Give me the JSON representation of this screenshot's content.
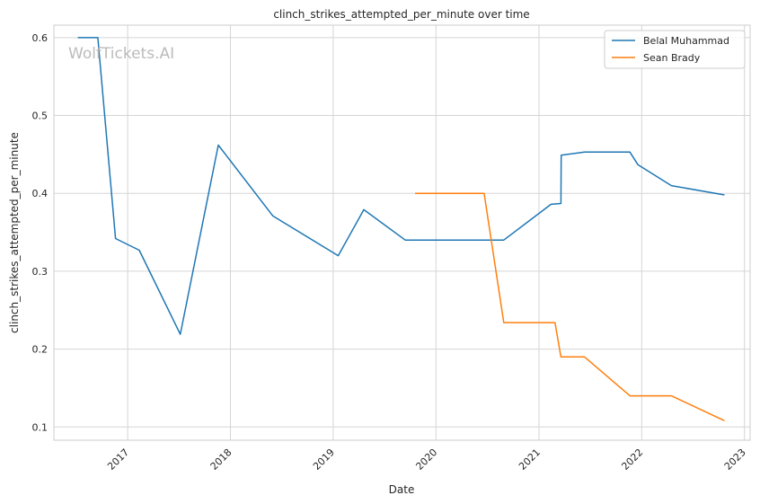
{
  "chart_data": {
    "type": "line",
    "title": "clinch_strikes_attempted_per_minute over time",
    "xlabel": "Date",
    "ylabel": "clinch_strikes_attempted_per_minute",
    "watermark": "WolfTickets.AI",
    "x_ticks": [
      "2017",
      "2018",
      "2019",
      "2020",
      "2021",
      "2022",
      "2023"
    ],
    "y_ticks": [
      "0.1",
      "0.2",
      "0.3",
      "0.4",
      "0.5",
      "0.6"
    ],
    "xlim": [
      "2016-04-14",
      "2023-01-21"
    ],
    "ylim": [
      0.083,
      0.616
    ],
    "grid": true,
    "legend_position": "top-right",
    "series": [
      {
        "name": "Belal Muhammad",
        "color": "#1f77b4",
        "points": [
          [
            "2016-07-08",
            0.6
          ],
          [
            "2016-09-17",
            0.6
          ],
          [
            "2016-11-19",
            0.342
          ],
          [
            "2017-02-11",
            0.327
          ],
          [
            "2017-07-07",
            0.219
          ],
          [
            "2017-11-19",
            0.462
          ],
          [
            "2018-06-01",
            0.371
          ],
          [
            "2019-01-19",
            0.32
          ],
          [
            "2019-04-20",
            0.379
          ],
          [
            "2019-09-14",
            0.34
          ],
          [
            "2020-04-18",
            0.34
          ],
          [
            "2020-08-29",
            0.34
          ],
          [
            "2021-02-13",
            0.386
          ],
          [
            "2021-03-20",
            0.387
          ],
          [
            "2021-03-21",
            0.449
          ],
          [
            "2021-06-12",
            0.453
          ],
          [
            "2021-11-20",
            0.453
          ],
          [
            "2021-12-18",
            0.437
          ],
          [
            "2022-04-16",
            0.41
          ],
          [
            "2022-10-22",
            0.398
          ]
        ]
      },
      {
        "name": "Sean Brady",
        "color": "#ff7f0e",
        "points": [
          [
            "2019-10-19",
            0.4
          ],
          [
            "2020-06-20",
            0.4
          ],
          [
            "2020-08-29",
            0.234
          ],
          [
            "2021-02-27",
            0.234
          ],
          [
            "2021-03-20",
            0.19
          ],
          [
            "2021-06-12",
            0.19
          ],
          [
            "2021-11-20",
            0.14
          ],
          [
            "2022-04-16",
            0.14
          ],
          [
            "2022-10-22",
            0.108
          ]
        ]
      }
    ]
  }
}
